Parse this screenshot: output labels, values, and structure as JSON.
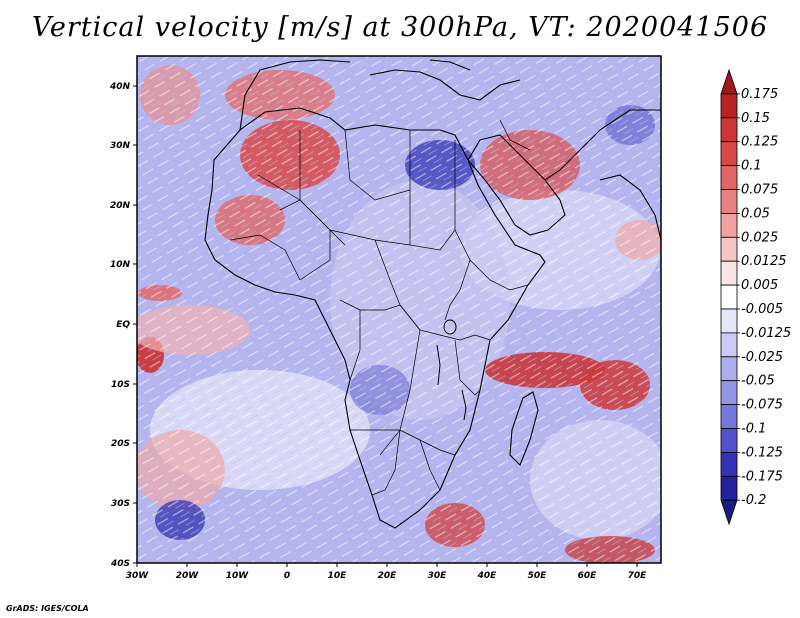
{
  "title": "Vertical velocity [m/s] at 300hPa, VT: 2020041506",
  "credit": "GrADS: IGES/COLA",
  "map": {
    "lon_range": [
      -30,
      75
    ],
    "lat_range": [
      -40,
      45
    ],
    "x_ticks": [
      "30W",
      "20W",
      "10W",
      "0",
      "10E",
      "20E",
      "30E",
      "40E",
      "50E",
      "60E",
      "70E"
    ],
    "y_ticks": [
      "40N",
      "30N",
      "20N",
      "10N",
      "EQ",
      "10S",
      "20S",
      "30S",
      "40S"
    ]
  },
  "colorbar": {
    "levels": [
      "0.175",
      "0.15",
      "0.125",
      "0.1",
      "0.075",
      "0.05",
      "0.025",
      "0.0125",
      "0.005",
      "-0.005",
      "-0.0125",
      "-0.025",
      "-0.05",
      "-0.075",
      "-0.1",
      "-0.125",
      "-0.175",
      "-0.2"
    ],
    "colors": [
      "#a01818",
      "#b82222",
      "#cc3636",
      "#d84848",
      "#e06666",
      "#e88282",
      "#f0a2a2",
      "#f6c4c4",
      "#fbe4e4",
      "#ffffff",
      "#e6e6fb",
      "#cacaf4",
      "#aeaeee",
      "#9494e6",
      "#7676dc",
      "#5252cc",
      "#3434b4",
      "#22229c",
      "#1a1a80"
    ]
  }
}
